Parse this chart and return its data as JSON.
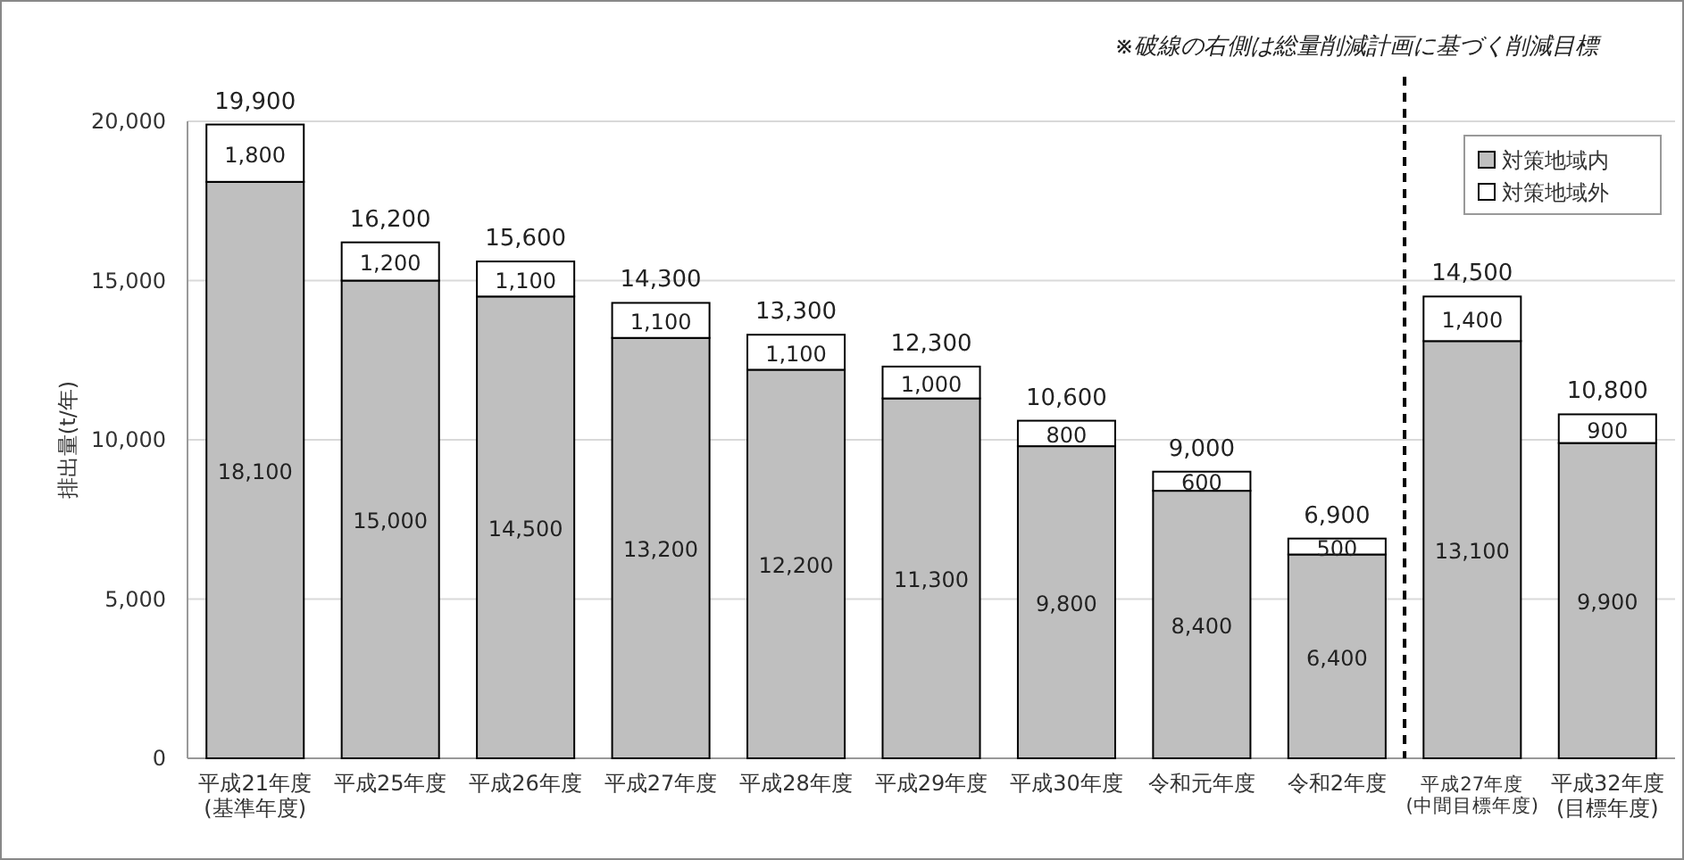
{
  "chart_data": {
    "type": "bar",
    "stacked": true,
    "categories": [
      "平成21年度\n(基準年度)",
      "平成25年度",
      "平成26年度",
      "平成27年度",
      "平成28年度",
      "平成29年度",
      "平成30年度",
      "令和元年度",
      "令和2年度",
      "平成27年度\n(中間目標年度)",
      "平成32年度\n(目標年度)"
    ],
    "series": [
      {
        "name": "対策地域内",
        "color": "#bfbfbf",
        "values": [
          18100,
          15000,
          14500,
          13200,
          12200,
          11300,
          9800,
          8400,
          6400,
          13100,
          9900
        ],
        "value_labels": [
          "18,100",
          "15,000",
          "14,500",
          "13,200",
          "12,200",
          "11,300",
          "9,800",
          "8,400",
          "6,400",
          "13,100",
          "9,900"
        ]
      },
      {
        "name": "対策地域外",
        "color": "#ffffff",
        "values": [
          1800,
          1200,
          1100,
          1100,
          1100,
          1000,
          800,
          600,
          500,
          1400,
          900
        ],
        "value_labels": [
          "1,800",
          "1,200",
          "1,100",
          "1,100",
          "1,100",
          "1,000",
          "800",
          "600",
          "500",
          "1,400",
          "900"
        ]
      }
    ],
    "totals": [
      "19,900",
      "16,200",
      "15,600",
      "14,300",
      "13,300",
      "12,300",
      "10,600",
      "9,000",
      "6,900",
      "14,500",
      "10,800"
    ],
    "ylabel": "排出量(t/年)",
    "ylim": [
      0,
      20000
    ],
    "yticks": [
      {
        "value": 0,
        "label": "0"
      },
      {
        "value": 5000,
        "label": "5,000"
      },
      {
        "value": 10000,
        "label": "10,000"
      },
      {
        "value": 15000,
        "label": "15,000"
      },
      {
        "value": 20000,
        "label": "20,000"
      }
    ],
    "grid": "y",
    "legend": "top right",
    "annotations": [
      "※破線の右側は総量削減計画に基づく削減目標"
    ]
  }
}
